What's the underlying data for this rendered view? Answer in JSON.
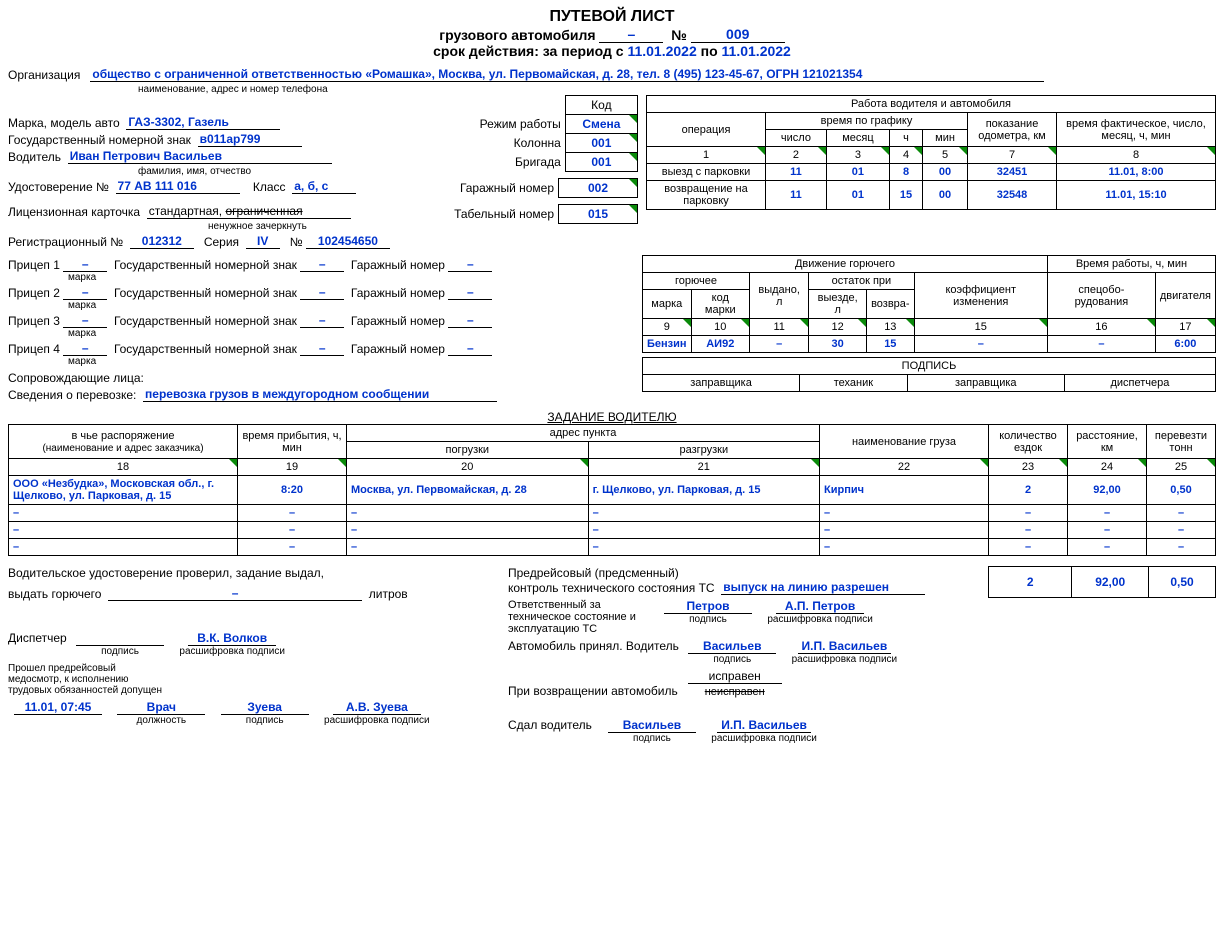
{
  "header": {
    "title": "ПУТЕВОЙ ЛИСТ",
    "subtitle": "грузового автомобиля",
    "dash": "–",
    "num_sign": "№",
    "number": "009",
    "validity_prefix": "срок действия: за период с",
    "date_from": "11.01.2022",
    "to": "по",
    "date_to": "11.01.2022"
  },
  "org": {
    "label": "Организация",
    "value": "общество с ограниченной ответственностью «Ромашка», Москва, ул. Первомайская, д. 28, тел. 8 (495) 123-45-67, ОГРН 121021354",
    "sublabel": "наименование, адрес и номер телефона"
  },
  "vehicle": {
    "brand_label": "Марка, модель авто",
    "brand": "ГАЗ-3302, Газель",
    "plate_label": "Государственный номерной знак",
    "plate": "в011ар799"
  },
  "driver": {
    "label": "Водитель",
    "name": "Иван Петрович Васильев",
    "name_sub": "фамилия, имя, отчество",
    "license_label": "Удостоверение №",
    "license": "77 АВ 111 016",
    "class_label": "Класс",
    "class": "a, б, с"
  },
  "license_card": {
    "label": "Лицензионная карточка",
    "standard": "стандартная,",
    "limited": "ограниченная",
    "sublabel": "ненужное зачеркнуть"
  },
  "reg": {
    "label": "Регистрационный №",
    "num": "012312",
    "series_label": "Серия",
    "series": "IV",
    "ext_num_label": "№",
    "ext_num": "102454650"
  },
  "trailers": [
    {
      "label": "Прицеп 1",
      "val": "–",
      "plate_label": "Государственный номерной знак",
      "plate": "–",
      "garage_label": "Гаражный номер",
      "garage": "–",
      "mark_sub": "марка"
    },
    {
      "label": "Прицеп 2",
      "val": "–",
      "plate_label": "Государственный номерной знак",
      "plate": "–",
      "garage_label": "Гаражный номер",
      "garage": "–",
      "mark_sub": "марка"
    },
    {
      "label": "Прицеп 3",
      "val": "–",
      "plate_label": "Государственный номерной знак",
      "plate": "–",
      "garage_label": "Гаражный номер",
      "garage": "–",
      "mark_sub": "марка"
    },
    {
      "label": "Прицеп 4",
      "val": "–",
      "plate_label": "Государственный номерной знак",
      "plate": "–",
      "garage_label": "Гаражный номер",
      "garage": "–",
      "mark_sub": "марка"
    }
  ],
  "accompany": {
    "label": "Сопровождающие лица:"
  },
  "transport_info": {
    "label": "Сведения о перевозке:",
    "value": "перевозка грузов в междугородном сообщении"
  },
  "modes": {
    "code_head": "Код",
    "mode_label": "Режим работы",
    "mode": "Смена",
    "column_label": "Колонна",
    "column": "001",
    "brigade_label": "Бригада",
    "brigade": "001",
    "garage_label": "Гаражный номер",
    "garage": "002",
    "tab_label": "Табельный номер",
    "tab": "015"
  },
  "work_table": {
    "title": "Работа водителя и автомобиля",
    "h_op": "операция",
    "h_sched": "время по графику",
    "h_odo": "показание одометра, км",
    "h_actual": "время фактическое, число, месяц, ч, мин",
    "h_day": "число",
    "h_month": "месяц",
    "h_h": "ч",
    "h_min": "мин",
    "cols": {
      "c1": "1",
      "c2": "2",
      "c3": "3",
      "c4": "4",
      "c5": "5",
      "c7": "7",
      "c8": "8"
    },
    "rows": [
      {
        "op": "выезд с парковки",
        "day": "11",
        "month": "01",
        "h": "8",
        "min": "00",
        "odo": "32451",
        "actual": "11.01, 8:00"
      },
      {
        "op": "возвращение на парковку",
        "day": "11",
        "month": "01",
        "h": "15",
        "min": "00",
        "odo": "32548",
        "actual": "11.01, 15:10"
      }
    ]
  },
  "fuel_table": {
    "title": "Движение горючего",
    "h_work": "Время работы, ч, мин",
    "h_fuel": "горючее",
    "h_issued": "выдано, л",
    "h_rest": "остаток при",
    "h_coef": "коэффициент изменения",
    "h_brand": "марка",
    "h_code": "код марки",
    "h_out": "выезде, л",
    "h_ret": "возвра-",
    "h_spec": "спецобо- рудования",
    "h_eng": "двигателя",
    "cols": {
      "c9": "9",
      "c10": "10",
      "c11": "11",
      "c12": "12",
      "c14": "13",
      "c15": "15",
      "c16": "16",
      "c17": "17"
    },
    "row": {
      "brand": "Бензин",
      "code": "АИ92",
      "issued": "–",
      "out": "30",
      "ret": "15",
      "coef": "–",
      "spec": "–",
      "eng": "6:00"
    }
  },
  "signatures_row": {
    "title": "ПОДПИСЬ",
    "zap": "заправщика",
    "tech": "теханик",
    "zap2": "заправщика",
    "disp": "диспетчера"
  },
  "task": {
    "title": "ЗАДАНИЕ ВОДИТЕЛЮ",
    "h_whose": "в чье распоряжение",
    "h_whose_sub": "(наименование и адрес заказчика)",
    "h_arr": "время прибытия, ч, мин",
    "h_addr": "адрес пункта",
    "h_load": "погрузки",
    "h_unload": "разгрузки",
    "h_cargo": "наименование груза",
    "h_trips": "количество ездок",
    "h_dist": "расстояние, км",
    "h_tons": "перевезти тонн",
    "cols": {
      "c18": "18",
      "c19": "19",
      "c20": "20",
      "c21": "21",
      "c22": "22",
      "c23": "23",
      "c24": "24",
      "c25": "25"
    },
    "rows": [
      {
        "c18": "ООО «Незбудка», Московская обл., г. Щелково, ул. Парковая, д. 15",
        "c19": "8:20",
        "c20": "Москва, ул. Первомайская, д. 28",
        "c21": "г. Щелково, ул. Парковая, д. 15",
        "c22": "Кирпич",
        "c23": "2",
        "c24": "92,00",
        "c25": "0,50"
      },
      {
        "c18": "–",
        "c19": "–",
        "c20": "–",
        "c21": "–",
        "c22": "–",
        "c23": "–",
        "c24": "–",
        "c25": "–"
      },
      {
        "c18": "–",
        "c19": "–",
        "c20": "–",
        "c21": "–",
        "c22": "–",
        "c23": "–",
        "c24": "–",
        "c25": "–"
      },
      {
        "c18": "–",
        "c19": "–",
        "c20": "–",
        "c21": "–",
        "c22": "–",
        "c23": "–",
        "c24": "–",
        "c25": "–"
      }
    ],
    "totals": {
      "trips": "2",
      "dist": "92,00",
      "tons": "0,50"
    }
  },
  "footer": {
    "check_text": "Водительское удостоверение проверил, задание выдал,",
    "issue_fuel": "выдать горючего",
    "issue_val": "–",
    "liters": "литров",
    "disp_label": "Диспетчер",
    "disp_sig": "подпись",
    "disp_name": "В.К. Волков",
    "disp_decode": "расшифровка подписи",
    "med_text": "Прошел предрейсовый медосмотр, к исполнению трудовых обязанностей допущен",
    "med_time": "11.01, 07:45",
    "med_role": "Врач",
    "med_sig": "Зуева",
    "med_name": "А.В. Зуева",
    "role_sub": "должность",
    "sig_sub": "подпись",
    "decode_sub": "расшифровка подписи",
    "pretrip1": "Предрейсовый (предсменный)",
    "pretrip2": "контроль технического состояния ТС",
    "release": "выпуск на линию разрешен",
    "resp_label": "Ответственный за техническое состояние и эксплуатацию ТС",
    "resp_sig": "Петров",
    "resp_name": "А.П. Петров",
    "car_accept": "Автомобиль принял. Водитель",
    "driver_sig": "Васильев",
    "driver_name": "И.П. Васильев",
    "on_return": "При возвращении автомобиль",
    "good": "исправен",
    "bad": "неисправен",
    "handed": "Сдал водитель",
    "handed_sig": "Васильев",
    "handed_name": "И.П. Васильев"
  }
}
